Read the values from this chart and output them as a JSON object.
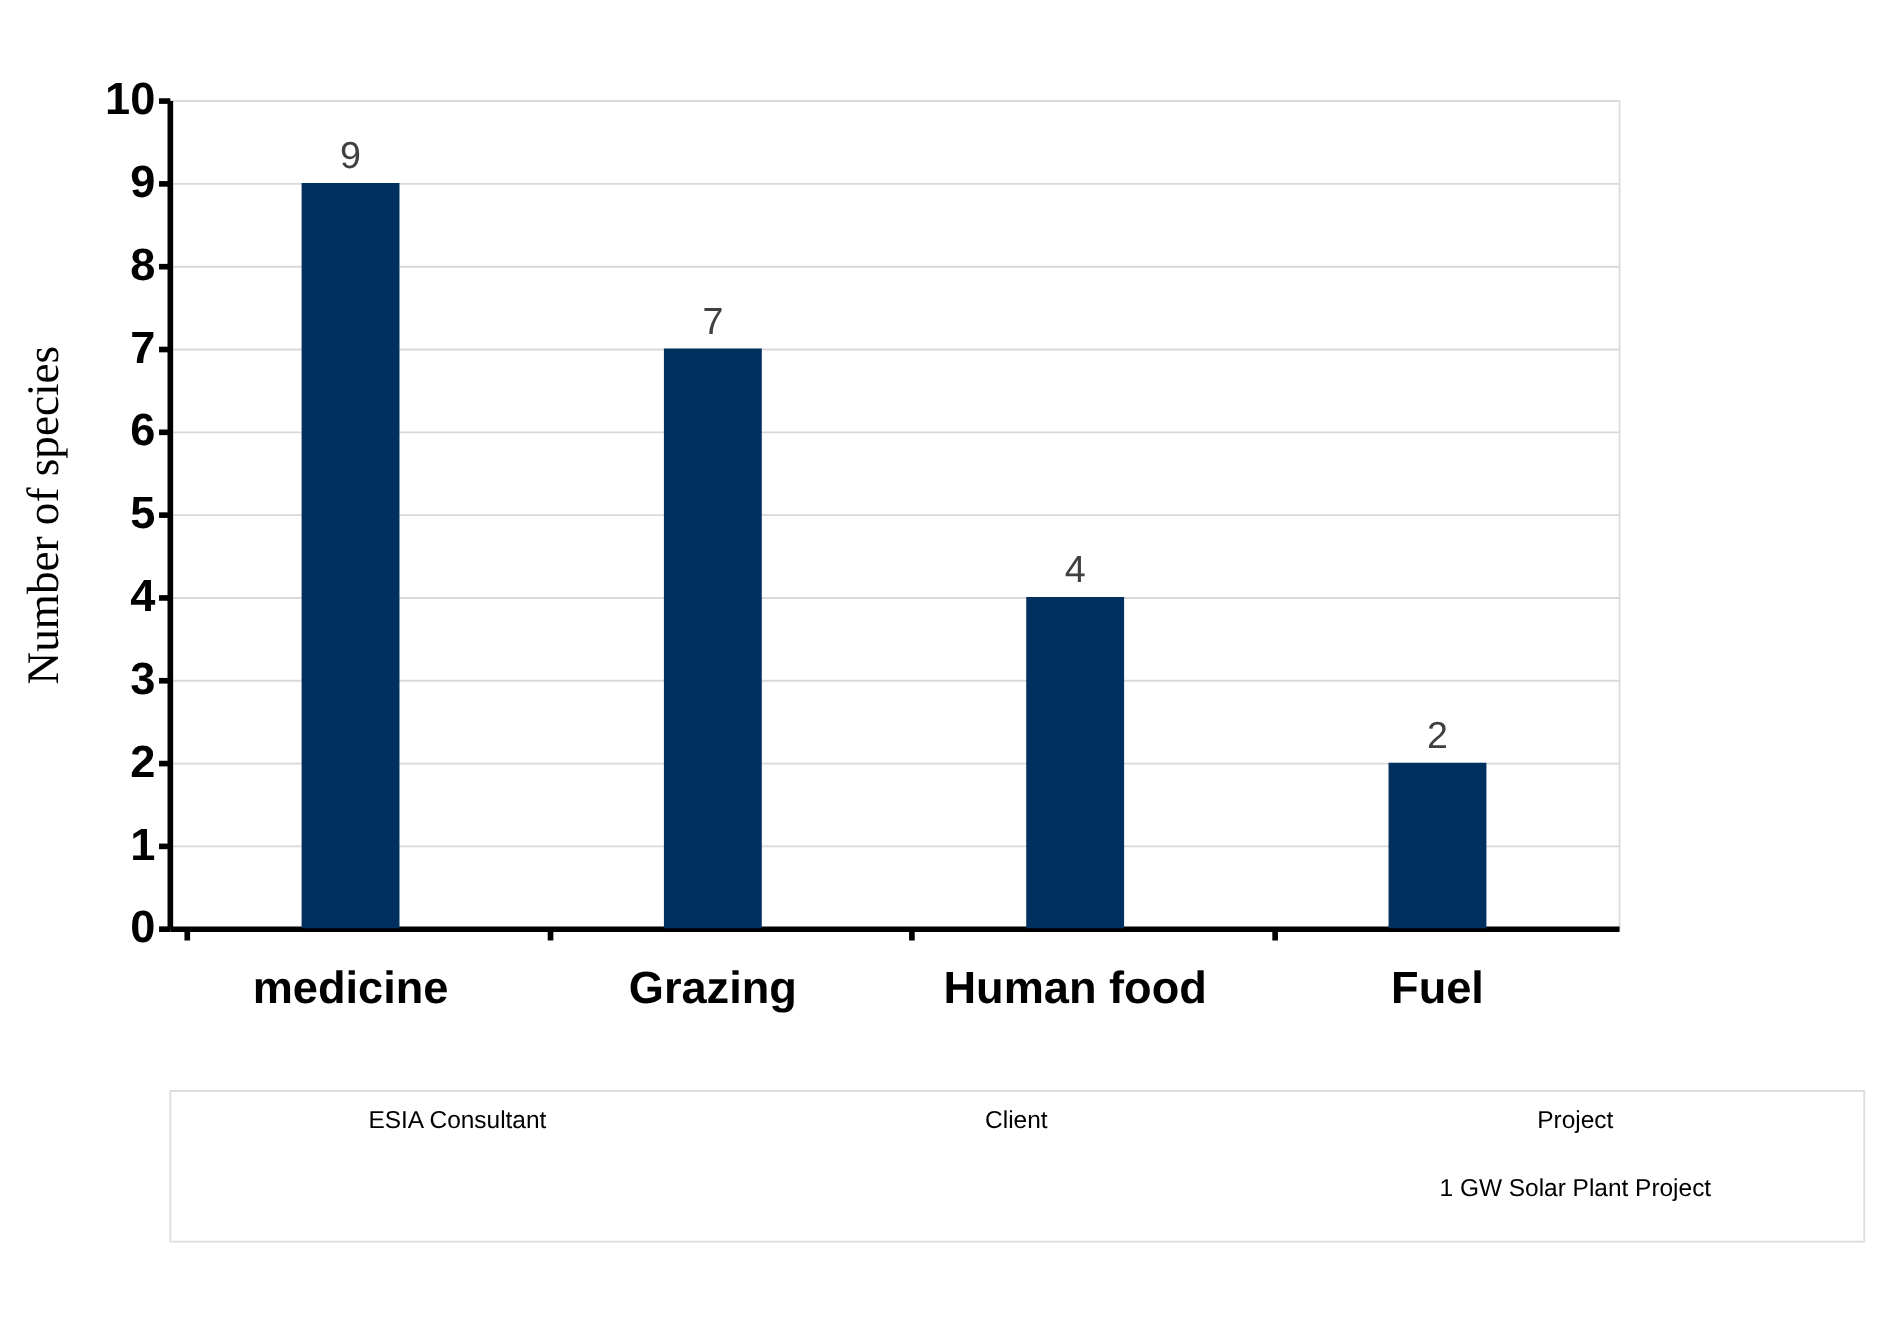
{
  "chart_data": {
    "type": "bar",
    "ylabel": "Number of  species",
    "categories": [
      "medicine",
      "Grazing",
      "Human food",
      "Fuel"
    ],
    "values": [
      9,
      7,
      4,
      2
    ],
    "color": "#00305f",
    "ylim": [
      0,
      10
    ],
    "yticks": [
      0,
      1,
      2,
      3,
      4,
      5,
      6,
      7,
      8,
      9,
      10
    ],
    "grid": "y",
    "data_labels": true,
    "annotations": [
      "ESIA Consultant",
      "Client",
      "Project",
      "1 GW Solar Plant Project"
    ]
  }
}
